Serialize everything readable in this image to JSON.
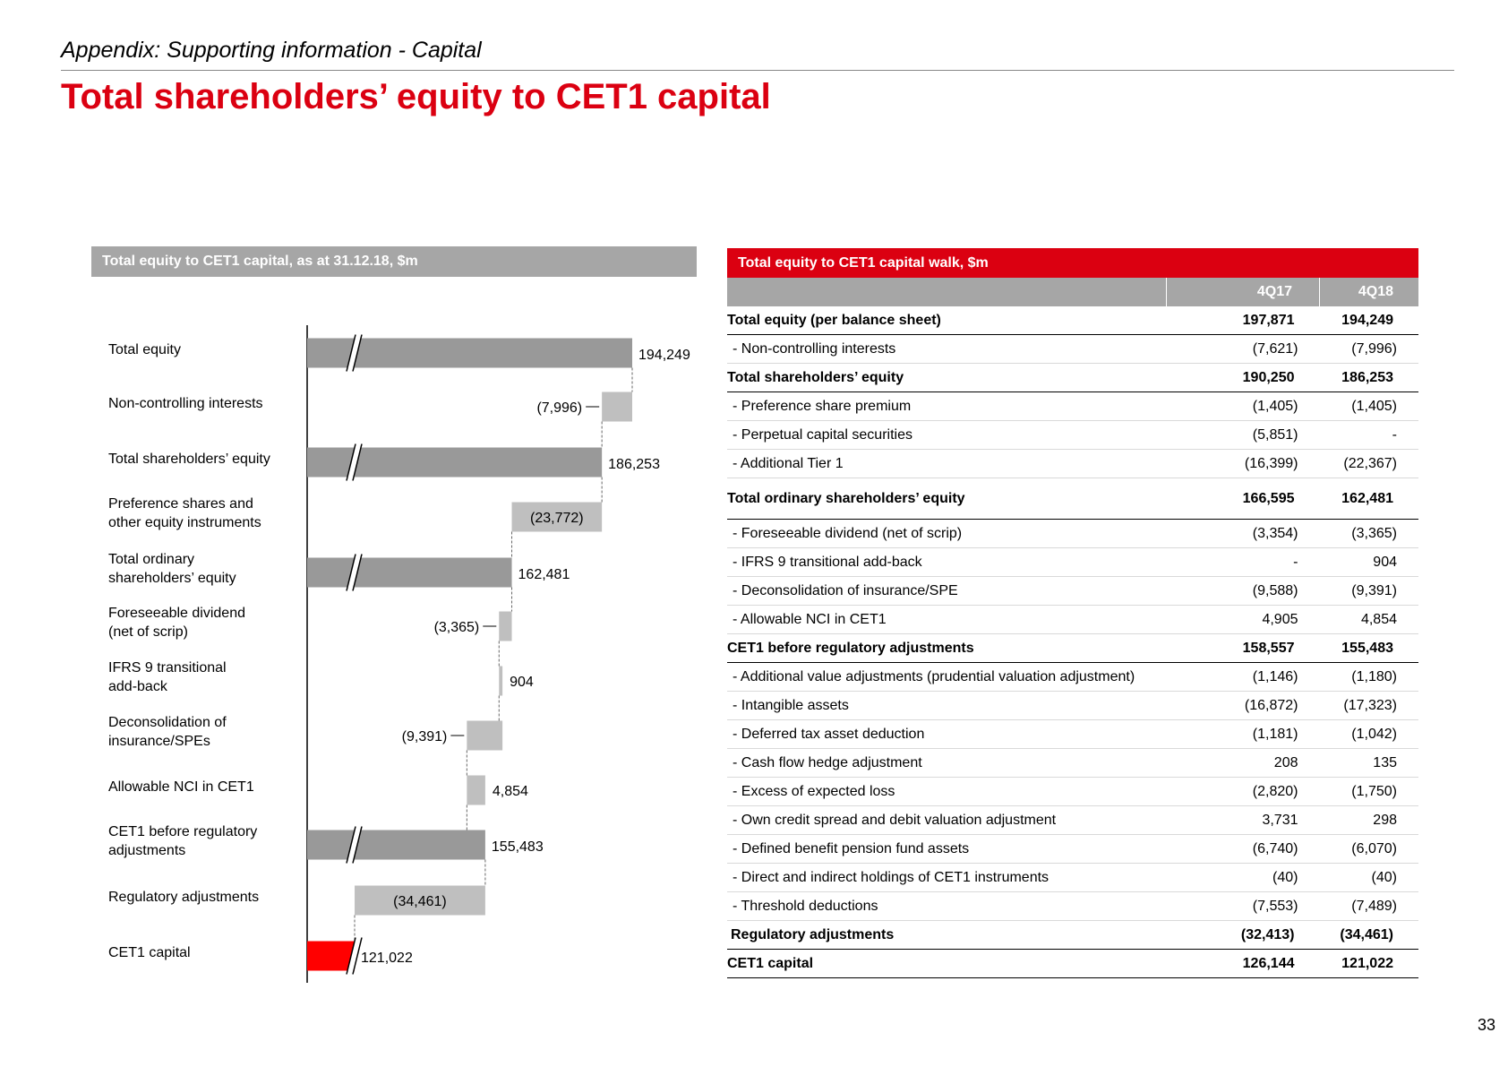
{
  "header": {
    "subtitle": "Appendix: Supporting information - Capital",
    "title": "Total shareholders’ equity to CET1 capital"
  },
  "colors": {
    "brand_red": "#db0011",
    "bar_red": "#ff0000",
    "bar_dark": "#999999",
    "bar_light": "#bfbfbf",
    "header_grey": "#a6a6a6"
  },
  "chart_data": {
    "type": "bar",
    "title": "Total equity to CET1 capital, as at 31.12.18, $m",
    "subtype": "waterfall",
    "axis_break": true,
    "categories": [
      [
        "Total equity"
      ],
      [
        "Non-controlling interests"
      ],
      [
        "Total shareholders’ equity"
      ],
      [
        "Preference shares and",
        "other equity instruments"
      ],
      [
        "Total ordinary",
        "shareholders’ equity"
      ],
      [
        "Foreseeable dividend",
        "(net of scrip)"
      ],
      [
        "IFRS 9 transitional",
        "add-back"
      ],
      [
        "Deconsolidation of",
        "insurance/SPEs"
      ],
      [
        "Allowable NCI in CET1"
      ],
      [
        "CET1 before regulatory",
        "adjustments"
      ],
      [
        "Regulatory adjustments"
      ],
      [
        "CET1 capital"
      ]
    ],
    "values": [
      194249,
      -7996,
      186253,
      -23772,
      162481,
      -3365,
      904,
      -9391,
      4854,
      155483,
      -34461,
      121022
    ],
    "value_labels": [
      "194,249",
      "(7,996)",
      "186,253",
      "(23,772)",
      "162,481",
      "(3,365)",
      "904",
      "(9,391)",
      "4,854",
      "155,483",
      "(34,461)",
      "121,022"
    ],
    "kinds": [
      "total",
      "delta",
      "total",
      "delta",
      "total",
      "delta",
      "delta",
      "delta",
      "delta",
      "total",
      "delta",
      "final"
    ]
  },
  "walk_table": {
    "title": "Total equity to CET1 capital walk, $m",
    "columns": [
      "",
      "4Q17",
      "4Q18"
    ],
    "rows": [
      {
        "label": "Total equity (per balance sheet)",
        "q17": "197,871",
        "q18": "194,249",
        "style": "bold"
      },
      {
        "label": "- Non-controlling interests",
        "q17": "(7,621)",
        "q18": "(7,996)",
        "style": ""
      },
      {
        "label": "Total shareholders’ equity",
        "q17": "190,250",
        "q18": "186,253",
        "style": "bold"
      },
      {
        "label": "- Preference share premium",
        "q17": "(1,405)",
        "q18": "(1,405)",
        "style": ""
      },
      {
        "label": "- Perpetual capital securities",
        "q17": "(5,851)",
        "q18": "-",
        "style": ""
      },
      {
        "label": "- Additional Tier 1",
        "q17": "(16,399)",
        "q18": "(22,367)",
        "style": ""
      },
      {
        "label": "Total ordinary shareholders’ equity",
        "q17": "166,595",
        "q18": "162,481",
        "style": "bold tall"
      },
      {
        "label": "- Foreseeable dividend (net of scrip)",
        "q17": "(3,354)",
        "q18": "(3,365)",
        "style": ""
      },
      {
        "label": "- IFRS 9 transitional add-back",
        "q17": "-",
        "q18": "904",
        "style": ""
      },
      {
        "label": "- Deconsolidation of insurance/SPE",
        "q17": "(9,588)",
        "q18": "(9,391)",
        "style": ""
      },
      {
        "label": "- Allowable NCI in CET1",
        "q17": "4,905",
        "q18": "4,854",
        "style": ""
      },
      {
        "label": "CET1 before regulatory adjustments",
        "q17": "158,557",
        "q18": "155,483",
        "style": "bold"
      },
      {
        "label": "- Additional value adjustments (prudential valuation adjustment)",
        "q17": "(1,146)",
        "q18": "(1,180)",
        "style": ""
      },
      {
        "label": "- Intangible assets",
        "q17": "(16,872)",
        "q18": "(17,323)",
        "style": ""
      },
      {
        "label": "- Deferred tax asset deduction",
        "q17": "(1,181)",
        "q18": "(1,042)",
        "style": ""
      },
      {
        "label": "- Cash flow hedge adjustment",
        "q17": "208",
        "q18": "135",
        "style": ""
      },
      {
        "label": "- Excess of expected loss",
        "q17": "(2,820)",
        "q18": "(1,750)",
        "style": ""
      },
      {
        "label": "- Own credit spread and debit valuation adjustment",
        "q17": "3,731",
        "q18": "298",
        "style": ""
      },
      {
        "label": "- Defined benefit pension fund assets",
        "q17": "(6,740)",
        "q18": "(6,070)",
        "style": ""
      },
      {
        "label": "- Direct and indirect holdings of CET1 instruments",
        "q17": "(40)",
        "q18": "(40)",
        "style": ""
      },
      {
        "label": "- Threshold deductions",
        "q17": "(7,553)",
        "q18": "(7,489)",
        "style": ""
      },
      {
        "label": "Regulatory adjustments",
        "q17": "(32,413)",
        "q18": "(34,461)",
        "style": "bold reg"
      },
      {
        "label": "CET1 capital",
        "q17": "126,144",
        "q18": "121,022",
        "style": "bold"
      }
    ]
  },
  "page_number": "33"
}
